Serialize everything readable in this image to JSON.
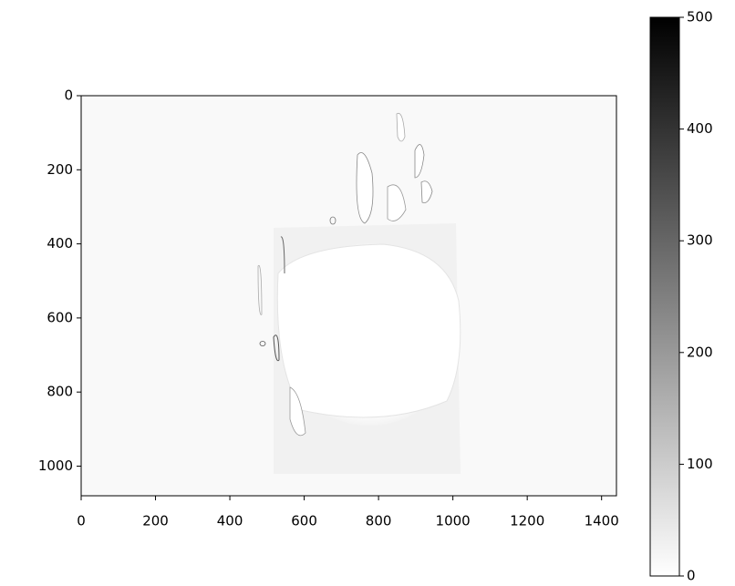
{
  "chart_data": {
    "type": "image",
    "xlim": [
      0,
      1440
    ],
    "ylim": [
      1080,
      0
    ],
    "xticks": [
      0,
      200,
      400,
      600,
      800,
      1000,
      1200,
      1400
    ],
    "yticks": [
      0,
      200,
      400,
      600,
      800,
      1000
    ],
    "colorbar": {
      "cmap": "gray_r",
      "clim": [
        0,
        500
      ],
      "ticks": [
        0,
        100,
        200,
        300,
        400,
        500
      ]
    }
  }
}
